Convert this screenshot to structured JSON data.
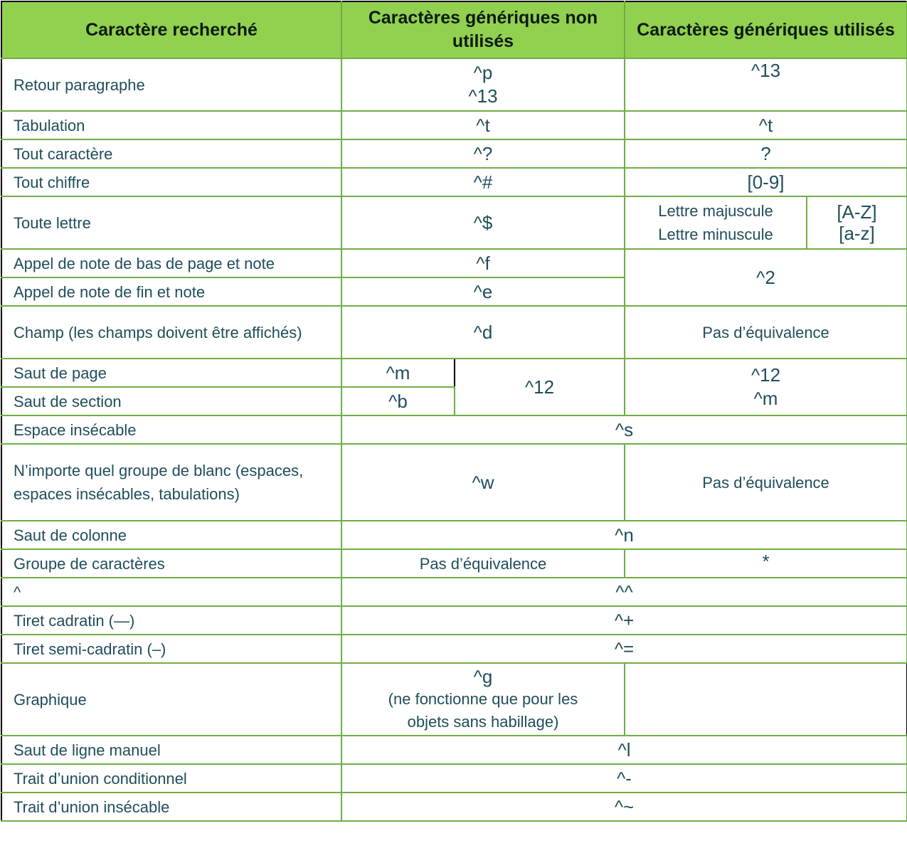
{
  "header": {
    "col1": "Caractère recherché",
    "col2": "Caractères génériques non utilisés",
    "col3": "Caractères génériques utilisés"
  },
  "rows": {
    "r1": {
      "label": "Retour paragraphe",
      "b_line1": "^p",
      "b_line2": "^13",
      "c": "^13"
    },
    "r2": {
      "label": "Tabulation",
      "b": "^t",
      "c": "^t"
    },
    "r3": {
      "label": "Tout caractère",
      "b": "^?",
      "c": "?"
    },
    "r4": {
      "label": "Tout chiffre",
      "b": "^#",
      "c": "[0-9]"
    },
    "r5": {
      "label": "Toute lettre",
      "b": "^$",
      "c_label1": "Lettre majuscule",
      "c_label2": "Lettre minuscule",
      "c_val1": "[A-Z]",
      "c_val2": "[a-z]"
    },
    "r6": {
      "label": "Appel de note de bas de page et note",
      "b": "^f",
      "c": "^2"
    },
    "r7": {
      "label": "Appel de note de fin et note",
      "b": "^e"
    },
    "r8": {
      "label": "Champ (les champs doivent être affichés)",
      "b": "^d",
      "c": "Pas d’équivalence"
    },
    "r9": {
      "label": "Saut de page",
      "b1": "^m",
      "b2": "^12",
      "c_line1": "^12",
      "c_line2": "^m"
    },
    "r10": {
      "label": "Saut de section",
      "b1": "^b"
    },
    "r11": {
      "label": "Espace insécable",
      "bc": "^s"
    },
    "r12": {
      "label": "N’importe quel groupe de blanc (espaces, espaces insécables, tabulations)",
      "b": "^w",
      "c": "Pas d’équivalence"
    },
    "r13": {
      "label": "Saut de colonne",
      "bc": "^n"
    },
    "r14": {
      "label": "Groupe de caractères",
      "b": "Pas d’équivalence",
      "c": "*"
    },
    "r15": {
      "label": "^",
      "bc": "^^"
    },
    "r16": {
      "label": "Tiret cadratin (—)",
      "bc": "^+"
    },
    "r17": {
      "label": "Tiret semi-cadratin (–)",
      "bc": "^="
    },
    "r18": {
      "label": "Graphique",
      "b_line1": "^g",
      "b_line2": "(ne fonctionne que pour les objets sans habillage)",
      "c": ""
    },
    "r19": {
      "label": "Saut de ligne manuel",
      "bc": "^l"
    },
    "r20": {
      "label": "Trait d’union conditionnel",
      "bc": "^-"
    },
    "r21": {
      "label": "Trait d’union insécable",
      "bc": "^~"
    }
  },
  "colors": {
    "header_bg": "#92d050",
    "border": "#70ad47",
    "text": "#1f4e5a"
  }
}
